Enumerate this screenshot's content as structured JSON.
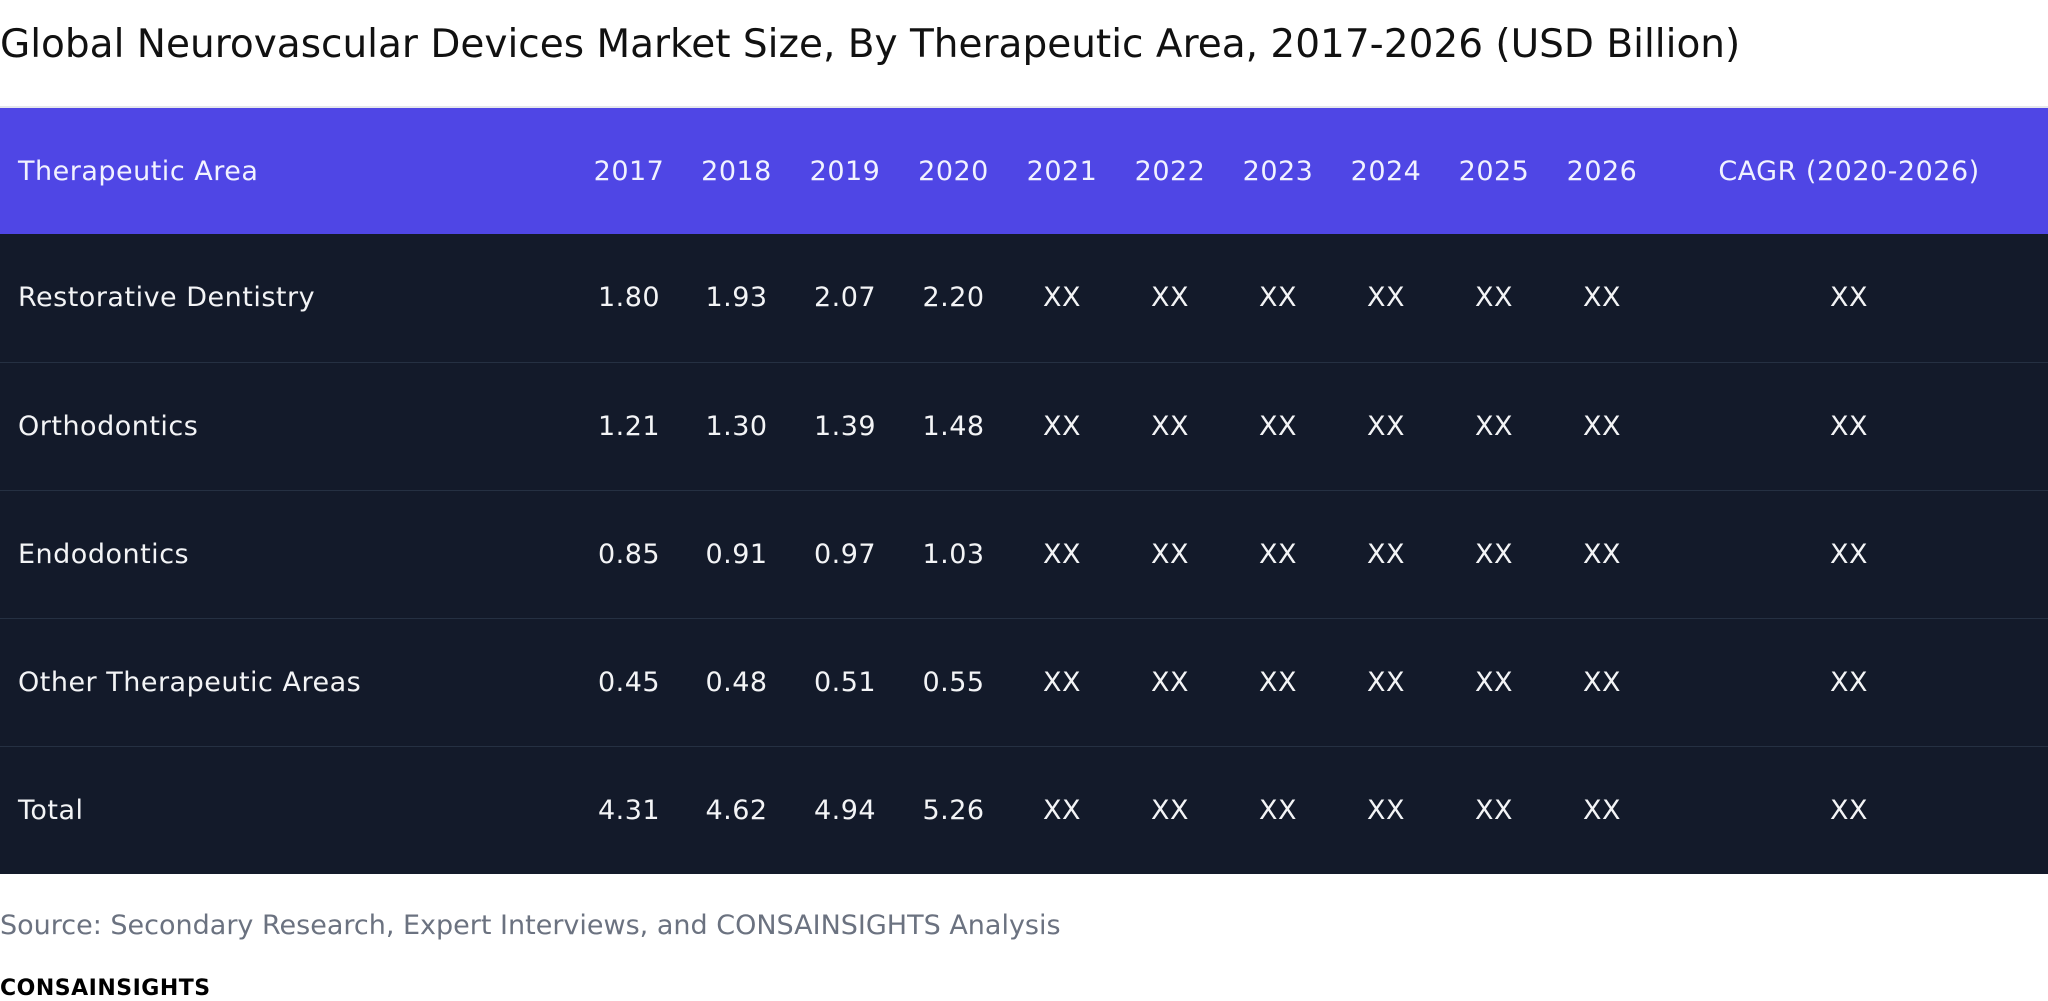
{
  "chart_data": {
    "type": "table",
    "title": "Global Neurovascular Devices Market Size, By Therapeutic Area, 2017-2026 (USD Billion)",
    "columns": [
      "Therapeutic Area",
      "2017",
      "2018",
      "2019",
      "2020",
      "2021",
      "2022",
      "2023",
      "2024",
      "2025",
      "2026",
      "CAGR (2020-2026)"
    ],
    "rows": [
      [
        "Restorative Dentistry",
        "1.80",
        "1.93",
        "2.07",
        "2.20",
        "XX",
        "XX",
        "XX",
        "XX",
        "XX",
        "XX",
        "XX"
      ],
      [
        "Orthodontics",
        "1.21",
        "1.30",
        "1.39",
        "1.48",
        "XX",
        "XX",
        "XX",
        "XX",
        "XX",
        "XX",
        "XX"
      ],
      [
        "Endodontics",
        "0.85",
        "0.91",
        "0.97",
        "1.03",
        "XX",
        "XX",
        "XX",
        "XX",
        "XX",
        "XX",
        "XX"
      ],
      [
        "Other Therapeutic Areas",
        "0.45",
        "0.48",
        "0.51",
        "0.55",
        "XX",
        "XX",
        "XX",
        "XX",
        "XX",
        "XX",
        "XX"
      ],
      [
        "Total",
        "4.31",
        "4.62",
        "4.94",
        "5.26",
        "XX",
        "XX",
        "XX",
        "XX",
        "XX",
        "XX",
        "XX"
      ]
    ]
  },
  "source": "Source: Secondary Research, Expert Interviews, and CONSAINSIGHTS Analysis",
  "brand": "CONSAINSIGHTS",
  "colors": {
    "header_bg": "#4f46e5",
    "body_bg": "#131a2a",
    "header_text": "#f1f2ff",
    "body_text": "#f3f4f6",
    "source_text": "#6b7280"
  }
}
